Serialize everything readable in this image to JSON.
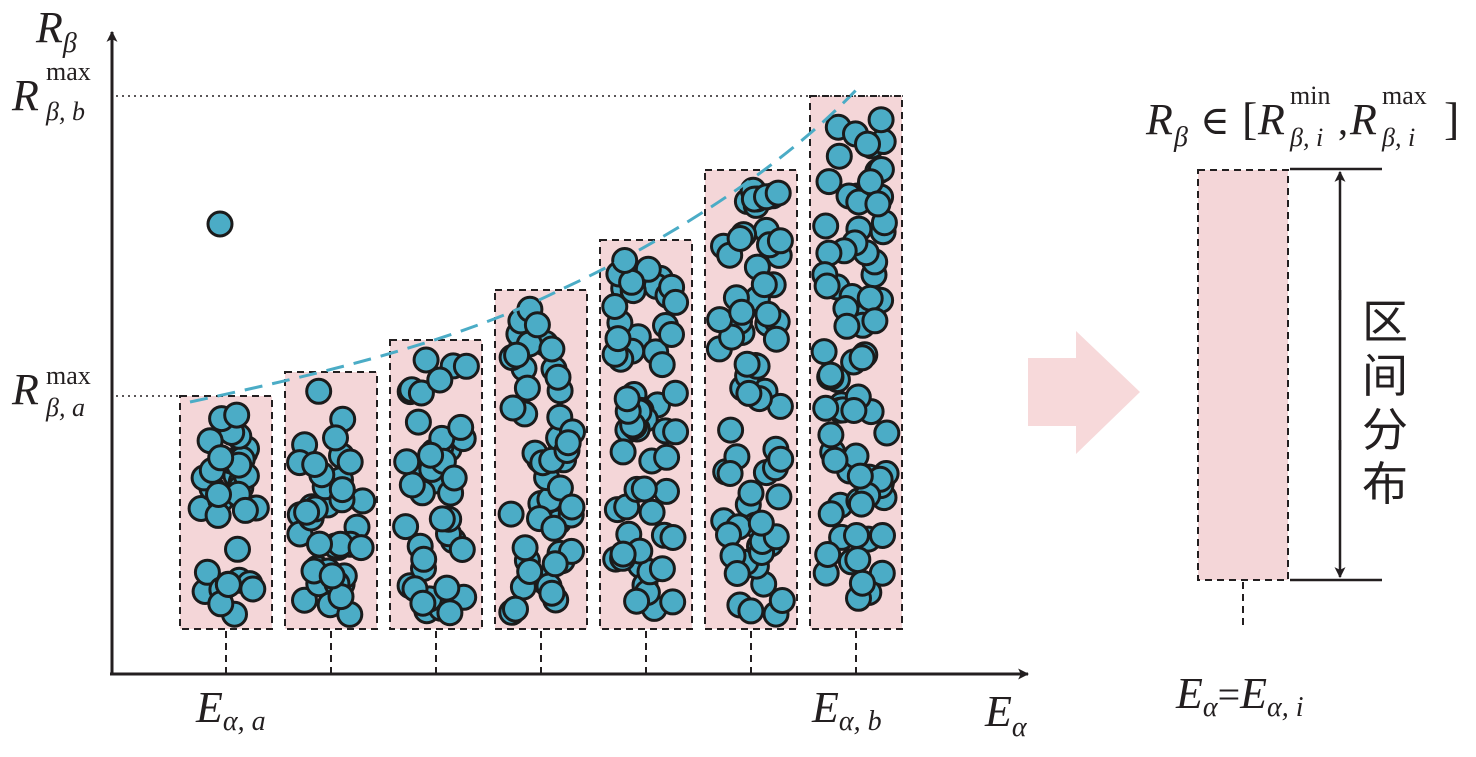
{
  "diagram": {
    "y_axis": {
      "symbol": "R",
      "subscript": "β"
    },
    "x_axis": {
      "symbol": "E",
      "subscript": "α"
    },
    "r_max_b": {
      "symbol": "R",
      "sup": "max",
      "sub": "β, b"
    },
    "r_max_a": {
      "symbol": "R",
      "sup": "max",
      "sub": "β, a"
    },
    "e_a": {
      "symbol": "E",
      "sub": "α, a"
    },
    "e_b": {
      "symbol": "E",
      "sub": "α, b"
    },
    "outlier_point": {
      "label": ""
    },
    "bins": [
      {
        "index": 1
      },
      {
        "index": 2
      },
      {
        "index": 3
      },
      {
        "index": 4
      },
      {
        "index": 5
      },
      {
        "index": 6
      },
      {
        "index": 7
      }
    ],
    "right_panel": {
      "interval_formula": {
        "r": "R",
        "r_sub": "β",
        "in": "∈",
        "open": "[",
        "min_sup": "min",
        "min_sub": "β, i",
        "comma": ",",
        "max_sup": "max",
        "max_sub": "β, i",
        "close": "]"
      },
      "vertical_label": [
        "区",
        "间",
        "分",
        "布"
      ],
      "bottom_formula": {
        "e1": "E",
        "e1_sub": "α",
        "eq": "=",
        "e2": "E",
        "e2_sub": "α, i"
      }
    },
    "colors": {
      "dot_fill": "#4bacc6",
      "box_fill": "#f4d6d8",
      "arrow_fill": "#f7d9da",
      "envelope": "#4bacc6"
    }
  }
}
